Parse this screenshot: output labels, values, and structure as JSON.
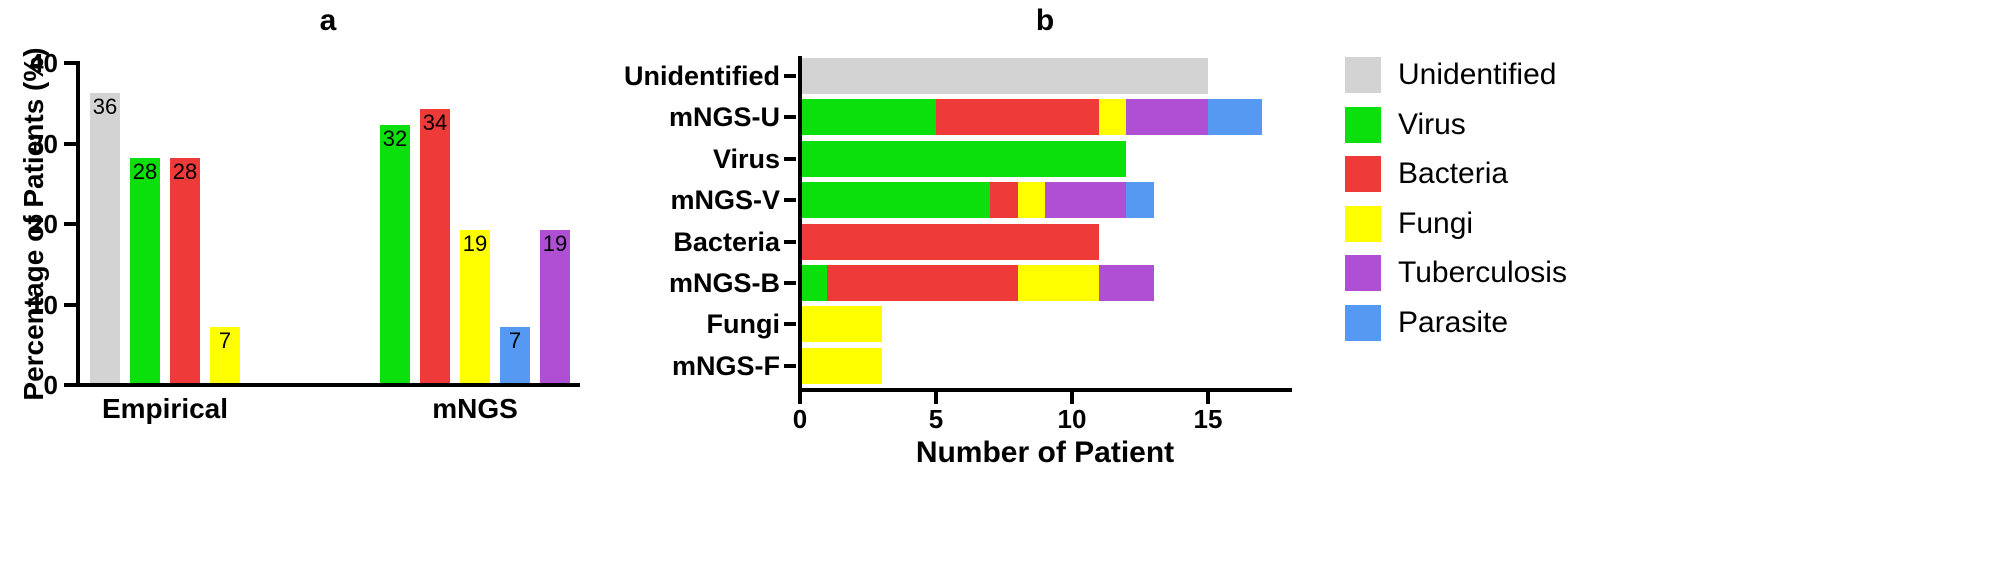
{
  "colors": {
    "unidentified": "#d3d3d3",
    "virus": "#0ce00c",
    "bacteria": "#ee3a38",
    "fungi": "#ffff00",
    "tuberculosis": "#ae4fd4",
    "parasite": "#5599f2"
  },
  "chart_data": [
    {
      "type": "bar",
      "panel": "a",
      "title": "a",
      "ylabel": "Percentage of Patients (%)",
      "ylim": [
        0,
        40
      ],
      "yticks": [
        0,
        10,
        20,
        30,
        40
      ],
      "grid": false,
      "groups": [
        {
          "label": "Empirical",
          "bars": [
            {
              "category": "Unidentified",
              "value": 36,
              "color_key": "unidentified"
            },
            {
              "category": "Virus",
              "value": 28,
              "color_key": "virus"
            },
            {
              "category": "Bacteria",
              "value": 28,
              "color_key": "bacteria"
            },
            {
              "category": "Fungi",
              "value": 7,
              "color_key": "fungi"
            }
          ]
        },
        {
          "label": "mNGS",
          "bars": [
            {
              "category": "Virus",
              "value": 32,
              "color_key": "virus"
            },
            {
              "category": "Bacteria",
              "value": 34,
              "color_key": "bacteria"
            },
            {
              "category": "Fungi",
              "value": 19,
              "color_key": "fungi"
            },
            {
              "category": "Parasite",
              "value": 7,
              "color_key": "parasite"
            },
            {
              "category": "Tuberculosis",
              "value": 19,
              "color_key": "tuberculosis"
            }
          ]
        }
      ]
    },
    {
      "type": "bar",
      "panel": "b",
      "orientation": "horizontal",
      "stacked": true,
      "title": "b",
      "xlabel": "Number of Patient",
      "xlim": [
        0,
        18
      ],
      "xticks": [
        0,
        5,
        10,
        15
      ],
      "grid": false,
      "rows": [
        {
          "label": "Unidentified",
          "segments": [
            {
              "color_key": "unidentified",
              "value": 15
            }
          ]
        },
        {
          "label": "mNGS-U",
          "segments": [
            {
              "color_key": "virus",
              "value": 5
            },
            {
              "color_key": "bacteria",
              "value": 6
            },
            {
              "color_key": "fungi",
              "value": 1
            },
            {
              "color_key": "tuberculosis",
              "value": 3
            },
            {
              "color_key": "parasite",
              "value": 2
            }
          ]
        },
        {
          "label": "Virus",
          "segments": [
            {
              "color_key": "virus",
              "value": 12
            }
          ]
        },
        {
          "label": "mNGS-V",
          "segments": [
            {
              "color_key": "virus",
              "value": 7
            },
            {
              "color_key": "bacteria",
              "value": 1
            },
            {
              "color_key": "fungi",
              "value": 1
            },
            {
              "color_key": "tuberculosis",
              "value": 3
            },
            {
              "color_key": "parasite",
              "value": 1
            }
          ]
        },
        {
          "label": "Bacteria",
          "segments": [
            {
              "color_key": "bacteria",
              "value": 11
            }
          ]
        },
        {
          "label": "mNGS-B",
          "segments": [
            {
              "color_key": "virus",
              "value": 1
            },
            {
              "color_key": "bacteria",
              "value": 7
            },
            {
              "color_key": "fungi",
              "value": 3
            },
            {
              "color_key": "tuberculosis",
              "value": 2
            }
          ]
        },
        {
          "label": "Fungi",
          "segments": [
            {
              "color_key": "fungi",
              "value": 3
            }
          ]
        },
        {
          "label": "mNGS-F",
          "segments": [
            {
              "color_key": "fungi",
              "value": 3
            }
          ]
        }
      ]
    }
  ],
  "legend": {
    "position": "right",
    "items": [
      {
        "label": "Unidentified",
        "color_key": "unidentified"
      },
      {
        "label": "Virus",
        "color_key": "virus"
      },
      {
        "label": "Bacteria",
        "color_key": "bacteria"
      },
      {
        "label": "Fungi",
        "color_key": "fungi"
      },
      {
        "label": "Tuberculosis",
        "color_key": "tuberculosis"
      },
      {
        "label": "Parasite",
        "color_key": "parasite"
      }
    ]
  }
}
